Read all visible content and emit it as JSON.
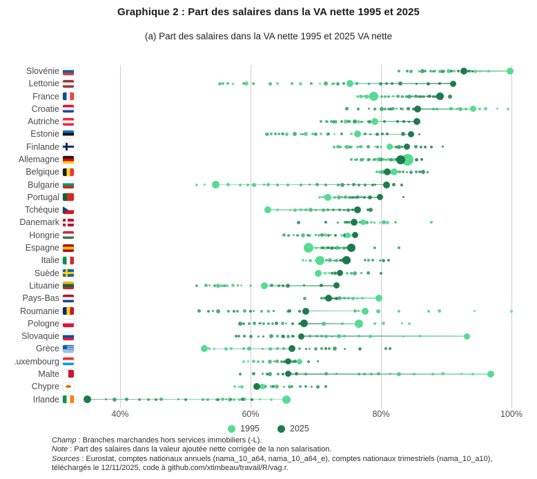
{
  "figure": {
    "title": "Graphique 2 : Part des salaires dans la VA nette 1995 et 2025",
    "subtitle": "(a) Part des salaires dans la VA nette 1995 et 2025 VA nette"
  },
  "notes": [
    {
      "lead": "Champ",
      "text": " : Branches marchandes hors services immobiliers (-L)."
    },
    {
      "lead": "Note",
      "text": " : Part des salaires dans la valeur ajoutée nette corrigée de la non salarisation."
    },
    {
      "lead": "Sources",
      "text": " : Eurostat, comptes nationaux annuels (nama_10_a64, nama_10_a64_e), comptes nationaux trimestriels (nama_10_a10), téléchargés le 12/11/2025, code à github.com/xtimbeau/travail/R/vag.r."
    }
  ],
  "chart_data": {
    "type": "scatter",
    "orientation": "horizontal-dotplot",
    "grid": "vertical-only",
    "xlim": [
      33,
      102
    ],
    "x_ticks": [
      {
        "value": 40,
        "label": "40%"
      },
      {
        "value": 60,
        "label": "60%"
      },
      {
        "value": 80,
        "label": "80%"
      },
      {
        "value": 100,
        "label": "100%"
      }
    ],
    "legend": {
      "position": "bottom",
      "items": [
        {
          "label": "1995",
          "color": "#55dc92"
        },
        {
          "label": "2025",
          "color": "#1f7a4b"
        }
      ]
    },
    "colors": {
      "c1995": "#55dc92",
      "c2025": "#1f7a4b",
      "grid": "#cdcdcd"
    },
    "countries": [
      {
        "label": "Slovénie",
        "flag": {
          "t": "h",
          "c": [
            "#ffffff",
            "#0a5da8",
            "#e03c31"
          ]
        },
        "v1995": 99.8,
        "v2025": 92.7,
        "s1995": 10,
        "s2025": 10,
        "path": [
          96.5,
          95.2,
          94.4,
          93.6,
          91.2,
          90.4,
          89.7,
          89.0,
          88.3,
          87.6,
          86.8,
          85.9,
          84.6,
          82.8,
          84.0,
          86.3,
          88.0,
          89.5,
          90.8,
          91.9,
          93.4,
          94.0
        ]
      },
      {
        "label": "Lettonie",
        "flag": {
          "t": "h",
          "c": [
            "#a4343a",
            "#ffffff",
            "#a4343a"
          ]
        },
        "v1995": 75.2,
        "v2025": 91.1,
        "s1995": 10,
        "s2025": 9,
        "path": [
          72.8,
          70.6,
          67.7,
          64.1,
          60.4,
          59.4,
          57.3,
          55.3,
          55.8,
          56.5,
          58.9,
          60.5,
          63.0,
          66.4,
          69.3,
          71.5,
          72.5,
          73.4,
          74.3,
          75.0,
          76.3,
          78.2,
          79.9,
          80.8,
          81.7,
          83.0,
          85.4,
          87.2,
          89.0
        ]
      },
      {
        "label": "France",
        "flag": {
          "t": "v",
          "c": [
            "#0a50a1",
            "#ffffff",
            "#ef4135"
          ]
        },
        "v1995": 78.9,
        "v2025": 89.1,
        "s1995": 13,
        "s2025": 11,
        "path": [
          78.2,
          77.4,
          76.9,
          76.4,
          77.0,
          77.8,
          78.5,
          79.3,
          80.1,
          80.6,
          81.2,
          81.9,
          82.6,
          83.3,
          83.9,
          84.3,
          84.8,
          85.3,
          85.8,
          86.1,
          86.6,
          87.1,
          87.5,
          88.0,
          88.5,
          90.6
        ]
      },
      {
        "label": "Croatie",
        "flag": {
          "t": "h",
          "c": [
            "#e8112d",
            "#ffffff",
            "#0f4da8"
          ]
        },
        "v1995": 94.1,
        "v2025": 85.6,
        "s1995": 9,
        "s2025": 10,
        "path": [
          99.5,
          97.8,
          96.0,
          95.1,
          93.0,
          92.2,
          91.7,
          90.7,
          88.6,
          88.0,
          83.3,
          82.4,
          81.8,
          81.2,
          80.6,
          80.1,
          78.2,
          74.8,
          76.5,
          79.0,
          81.5,
          83.0,
          84.2,
          85.0
        ]
      },
      {
        "label": "Autriche",
        "flag": {
          "t": "h",
          "c": [
            "#ed2939",
            "#ffffff",
            "#ed2939"
          ]
        },
        "v1995": 79.1,
        "v2025": 85.5,
        "s1995": 10,
        "s2025": 10,
        "path": [
          78.0,
          77.2,
          76.6,
          75.9,
          75.2,
          74.6,
          73.9,
          73.1,
          72.4,
          71.6,
          70.8,
          71.8,
          72.8,
          74.0,
          75.0,
          76.0,
          77.0,
          78.3,
          80.5,
          82.5,
          83.5,
          84.3
        ]
      },
      {
        "label": "Estonie",
        "flag": {
          "t": "h",
          "c": [
            "#0072ce",
            "#111111",
            "#ffffff"
          ]
        },
        "v1995": 76.4,
        "v2025": 84.6,
        "s1995": 10,
        "s2025": 9,
        "path": [
          75.5,
          72.9,
          71.8,
          70.8,
          69.5,
          68.5,
          67.7,
          65.6,
          64.9,
          64.3,
          63.2,
          62.7,
          62.5,
          63.8,
          65.0,
          66.8,
          68.0,
          70.0,
          72.0,
          74.0,
          77.6,
          78.4,
          79.4,
          80.2,
          81.0,
          83.4,
          85.9
        ]
      },
      {
        "label": "Finlande",
        "flag": {
          "t": "cross",
          "bg": "#ffffff",
          "cross": "#002f6c"
        },
        "v1995": 81.3,
        "v2025": 84.0,
        "s1995": 9,
        "s2025": 9,
        "path": [
          80.0,
          79.1,
          77.0,
          76.4,
          75.5,
          74.8,
          74.5,
          73.4,
          72.8,
          73.8,
          75.2,
          76.8,
          78.0,
          79.5,
          82.3,
          82.8,
          83.2,
          85.3,
          86.1,
          86.8,
          87.7,
          89.5
        ]
      },
      {
        "label": "Allemagne",
        "flag": {
          "t": "h",
          "c": [
            "#1a1a1a",
            "#dd0000",
            "#ffce00"
          ]
        },
        "v1995": 84.1,
        "v2025": 83.0,
        "s1995": 17,
        "s2025": 13,
        "path": [
          83.5,
          82.8,
          82.0,
          81.2,
          80.4,
          79.6,
          78.8,
          78.0,
          77.2,
          76.3,
          75.5,
          76.0,
          77.0,
          78.2,
          79.0,
          80.0,
          80.8,
          81.5,
          82.3,
          83.2,
          84.0,
          84.8,
          85.5,
          86.2
        ]
      },
      {
        "label": "Belgique",
        "flag": {
          "t": "v",
          "c": [
            "#1a1a1a",
            "#fdda24",
            "#ef3340"
          ]
        },
        "v1995": 82.0,
        "v2025": 80.9,
        "s1995": 10,
        "s2025": 10,
        "path": [
          81.5,
          80.5,
          80.0,
          79.4,
          79.8,
          80.3,
          80.9,
          81.4,
          82.4,
          82.9,
          83.4,
          84.0,
          84.6,
          85.4,
          85.9,
          86.5,
          87.1
        ]
      },
      {
        "label": "Bulgarie",
        "flag": {
          "t": "h",
          "c": [
            "#ffffff",
            "#00966e",
            "#d62612"
          ]
        },
        "v1995": 54.7,
        "v2025": 80.8,
        "s1995": 11,
        "s2025": 10,
        "path": [
          51.7,
          53.0,
          56.6,
          58.4,
          59.6,
          60.5,
          62.1,
          62.7,
          64.1,
          65.7,
          67.7,
          69.1,
          70.2,
          71.5,
          73.4,
          74.1,
          75.0,
          75.8,
          76.6,
          77.6,
          78.7,
          79.1,
          82.0,
          83.2
        ]
      },
      {
        "label": "Portugal",
        "flag": {
          "t": "v",
          "c": [
            "#046a38",
            "#da291c"
          ],
          "stops": [
            38
          ]
        },
        "v1995": 71.8,
        "v2025": 79.8,
        "s1995": 10,
        "s2025": 9,
        "path": [
          70.6,
          71.0,
          71.4,
          72.2,
          72.9,
          73.5,
          74.0,
          74.6,
          75.1,
          75.5,
          76.2,
          77.0,
          76.5,
          75.8,
          77.5,
          78.3,
          83.4
        ]
      },
      {
        "label": "Tchéquie",
        "flag": {
          "t": "tri",
          "c": [
            "#ffffff",
            "#d7141a"
          ],
          "tri": "#11457e"
        },
        "v1995": 62.6,
        "v2025": 76.4,
        "s1995": 10,
        "s2025": 10,
        "path": [
          64.1,
          66.1,
          66.8,
          67.7,
          68.5,
          69.2,
          70.0,
          71.2,
          71.9,
          72.7,
          73.7,
          74.3,
          75.0,
          75.7,
          78.0,
          78.4
        ]
      },
      {
        "label": "Danemark",
        "flag": {
          "t": "cross",
          "bg": "#c8102e",
          "cross": "#ffffff"
        },
        "v1995": 77.3,
        "v2025": 75.9,
        "s1995": 8,
        "s2025": 10,
        "path": [
          78.5,
          79.8,
          81.0,
          82.2,
          87.7,
          80.4,
          79.0,
          77.8,
          76.8,
          75.1,
          74.5,
          73.4,
          67.4,
          71.5,
          74.8
        ]
      },
      {
        "label": "Hongrie",
        "flag": {
          "t": "h",
          "c": [
            "#ce2939",
            "#ffffff",
            "#477050"
          ]
        },
        "v1995": 74.9,
        "v2025": 76.0,
        "s1995": 8,
        "s2025": 9,
        "path": [
          74.0,
          72.3,
          71.5,
          70.5,
          69.1,
          68.0,
          66.6,
          65.1,
          65.8,
          67.2,
          68.8,
          70.0,
          71.0,
          72.0,
          73.0,
          74.5
        ]
      },
      {
        "label": "Espagne",
        "flag": {
          "t": "h",
          "c": [
            "#aa151b",
            "#f1bf00",
            "#aa151b"
          ]
        },
        "v1995": 68.9,
        "v2025": 75.4,
        "s1995": 14,
        "s2025": 12,
        "path": [
          70.0,
          70.7,
          71.4,
          72.0,
          72.7,
          73.3,
          73.7,
          74.3,
          79.1,
          82.7,
          74.8,
          73.0,
          72.4,
          71.8,
          71.0
        ]
      },
      {
        "label": "Italie",
        "flag": {
          "t": "v",
          "c": [
            "#009246",
            "#ffffff",
            "#ce2b37"
          ]
        },
        "v1995": 70.6,
        "v2025": 74.7,
        "s1995": 13,
        "s2025": 12,
        "path": [
          68.0,
          68.5,
          69.2,
          70.0,
          71.6,
          72.2,
          72.8,
          73.2,
          77.6,
          78.1,
          78.7,
          79.8,
          80.4,
          81.2,
          73.8,
          74.2
        ]
      },
      {
        "label": "Suède",
        "flag": {
          "t": "cross",
          "bg": "#0a6aa7",
          "cross": "#fecc02"
        },
        "v1995": 70.4,
        "v2025": 73.7,
        "s1995": 10,
        "s2025": 9,
        "path": [
          71.4,
          72.0,
          72.9,
          74.8,
          75.4,
          76.0,
          77.0,
          78.0,
          80.0,
          72.5,
          73.0
        ]
      },
      {
        "label": "Lituanie",
        "flag": {
          "t": "h",
          "c": [
            "#fdb913",
            "#006a44",
            "#c1272d"
          ]
        },
        "v1995": 62.1,
        "v2025": 73.2,
        "s1995": 10,
        "s2025": 9,
        "path": [
          60.0,
          58.6,
          57.3,
          56.4,
          55.6,
          55.0,
          53.7,
          53.2,
          51.7,
          54.5,
          56.0,
          58.0,
          63.2,
          64.3,
          65.0,
          65.7,
          68.2,
          70.8
        ]
      },
      {
        "label": "Pays-Bas",
        "flag": {
          "t": "h",
          "c": [
            "#ae1c28",
            "#ffffff",
            "#21468b"
          ]
        },
        "v1995": 79.7,
        "v2025": 72.0,
        "s1995": 10,
        "s2025": 10,
        "path": [
          77.1,
          76.4,
          75.7,
          75.0,
          74.4,
          73.7,
          72.9,
          68.3,
          70.9,
          71.3,
          71.6,
          72.5,
          73.2
        ]
      },
      {
        "label": "Roumanie",
        "flag": {
          "t": "v",
          "c": [
            "#002b7f",
            "#fcd116",
            "#ce1126"
          ]
        },
        "v1995": 77.6,
        "v2025": 68.5,
        "s1995": 10,
        "s2025": 10,
        "path": [
          100.0,
          94.3,
          88.9,
          87.3,
          82.7,
          79.6,
          76.6,
          76.0,
          65.7,
          62.7,
          61.7,
          60.5,
          59.1,
          58.0,
          56.6,
          55.0,
          54.2,
          52.1,
          53.5,
          57.5,
          60.0,
          63.5,
          66.0,
          67.5
        ]
      },
      {
        "label": "Pologne",
        "flag": {
          "t": "h",
          "c": [
            "#ffffff",
            "#dc143c"
          ],
          "stops": [
            50
          ]
        },
        "v1995": 76.6,
        "v2025": 68.2,
        "s1995": 12,
        "s2025": 11,
        "path": [
          84.3,
          83.2,
          80.4,
          79.1,
          74.1,
          71.2,
          65.5,
          64.9,
          63.4,
          62.7,
          62.0,
          61.3,
          60.6,
          59.8,
          58.9,
          58.4,
          61.5,
          64.0,
          66.5,
          67.5
        ]
      },
      {
        "label": "Slovaquie",
        "flag": {
          "t": "h",
          "c": [
            "#ffffff",
            "#0b4ea2",
            "#ee1c25"
          ]
        },
        "v1995": 93.2,
        "v2025": 67.8,
        "s1995": 9,
        "s2025": 9,
        "path": [
          85.9,
          83.4,
          78.4,
          76.6,
          74.4,
          73.5,
          72.5,
          71.6,
          70.9,
          70.2,
          69.1,
          66.6,
          65.8,
          64.9,
          64.1,
          63.2,
          61.2,
          60.0,
          58.2,
          57.8,
          59.0,
          62.0,
          65.0,
          66.5
        ]
      },
      {
        "label": "Grèce",
        "flag": {
          "t": "greece",
          "c": [
            "#0d5eaf",
            "#ffffff"
          ]
        },
        "v1995": 52.9,
        "v2025": 66.3,
        "s1995": 10,
        "s2025": 10,
        "path": [
          53.7,
          54.4,
          56.2,
          57.0,
          58.9,
          59.8,
          61.9,
          63.0,
          64.1,
          65.1,
          67.5,
          69.1,
          70.0,
          70.9,
          72.1,
          72.9,
          74.4,
          76.8,
          80.7,
          81.4,
          71.5,
          68.5
        ]
      },
      {
        "label": ".uxembourg",
        "flag": {
          "t": "h",
          "c": [
            "#ed2939",
            "#ffffff",
            "#00a1de"
          ]
        },
        "v1995": 67.5,
        "v2025": 65.8,
        "s1995": 8,
        "s2025": 9,
        "path": [
          58.9,
          59.6,
          60.5,
          61.2,
          61.9,
          63.0,
          63.6,
          64.1,
          64.8,
          66.5,
          68.9,
          70.3,
          66.8,
          65.2
        ]
      },
      {
        "label": "Malte",
        "flag": {
          "t": "v",
          "c": [
            "#ffffff",
            "#cf142b"
          ],
          "stops": [
            50
          ]
        },
        "v1995": 96.8,
        "v2025": 65.8,
        "s1995": 10,
        "s2025": 9,
        "path": [
          94.1,
          92.3,
          89.5,
          87.9,
          85.1,
          82.7,
          81.4,
          79.6,
          78.5,
          77.5,
          76.6,
          73.2,
          71.6,
          68.5,
          64.2,
          63.0,
          61.9,
          60.5,
          58.4,
          62.5,
          65.0,
          66.2,
          67.0
        ]
      },
      {
        "label": "Chypre",
        "flag": {
          "t": "cyprus",
          "bg": "#ffffff",
          "shape": "#d57800"
        },
        "v1995": 61.8,
        "v2025": 60.9,
        "s1995": 8,
        "s2025": 10,
        "path": [
          57.6,
          58.3,
          58.7,
          62.3,
          63.2,
          64.0,
          65.1,
          66.0,
          66.3,
          67.6,
          68.5,
          69.4,
          70.3,
          71.5,
          63.5,
          62.0
        ]
      },
      {
        "label": "Irlande",
        "flag": {
          "t": "v",
          "c": [
            "#009a44",
            "#ffffff",
            "#ff8200"
          ]
        },
        "v1995": 65.5,
        "v2025": 35.0,
        "s1995": 12,
        "s2025": 11,
        "path": [
          63.2,
          61.4,
          59.1,
          58.3,
          57.5,
          56.8,
          56.2,
          55.7,
          54.8,
          53.4,
          52.7,
          48.9,
          46.3,
          44.3,
          43.0,
          39.2,
          37.8,
          41.0,
          45.5,
          50.0,
          55.0,
          57.0,
          58.8,
          60.2
        ]
      }
    ]
  }
}
